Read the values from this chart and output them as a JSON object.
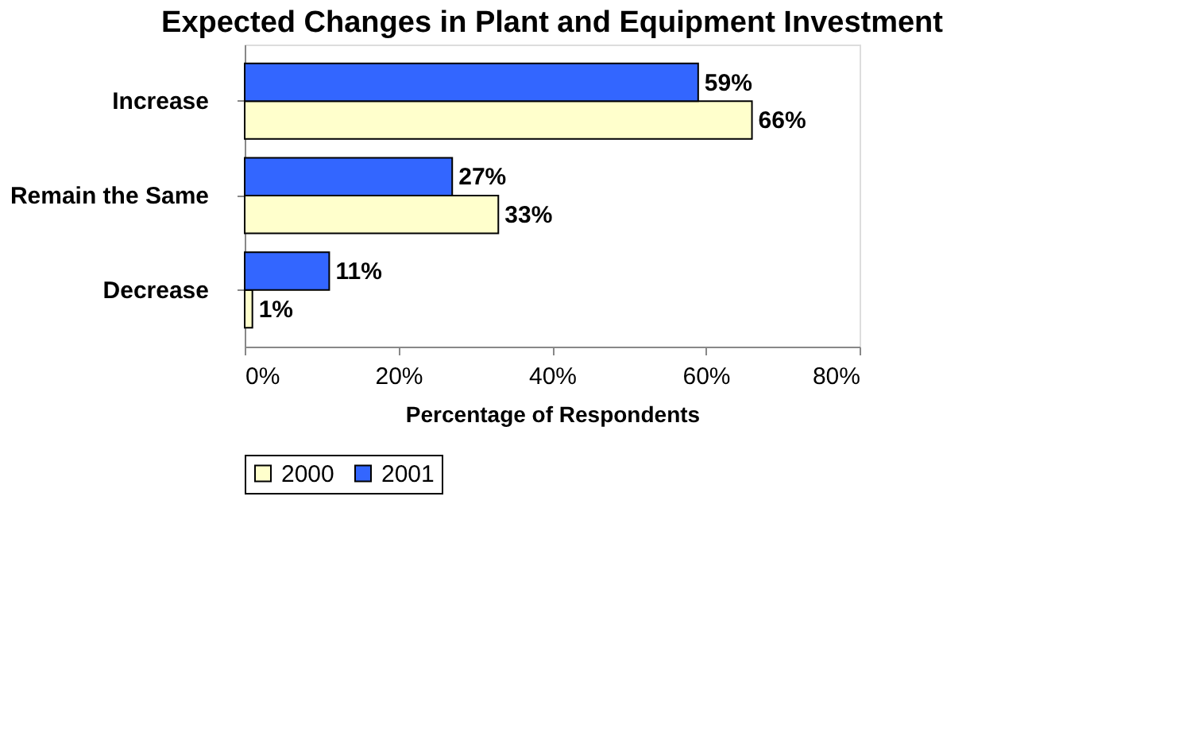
{
  "chart_data": {
    "type": "bar",
    "orientation": "horizontal",
    "title": "Expected Changes in Plant and Equipment Investment",
    "xlabel": "Percentage of Respondents",
    "categories": [
      "Increase",
      "Remain the Same",
      "Decrease"
    ],
    "series": [
      {
        "name": "2000",
        "color": "#ffffcc",
        "values": [
          66,
          33,
          1
        ],
        "value_labels": [
          "66%",
          "33%",
          "1%"
        ]
      },
      {
        "name": "2001",
        "color": "#3366ff",
        "values": [
          59,
          27,
          11
        ],
        "value_labels": [
          "59%",
          "27%",
          "11%"
        ]
      }
    ],
    "xlim": [
      0,
      80
    ],
    "xticks": [
      {
        "value": 0,
        "label": "0%"
      },
      {
        "value": 20,
        "label": "20%"
      },
      {
        "value": 40,
        "label": "40%"
      },
      {
        "value": 60,
        "label": "60%"
      },
      {
        "value": 80,
        "label": "80%"
      }
    ],
    "grid": false,
    "legend": "bottom"
  }
}
